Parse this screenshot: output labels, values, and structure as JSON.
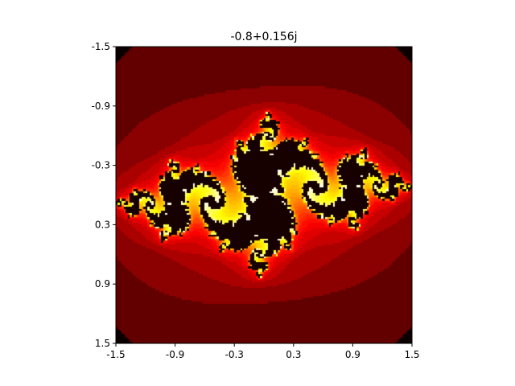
{
  "chart_data": {
    "type": "heatmap",
    "title": "-0.8+0.156j",
    "xlabel": "",
    "ylabel": "",
    "c": {
      "re": -0.8,
      "im": 0.156
    },
    "xlim": [
      -1.5,
      1.5
    ],
    "ylim": [
      -1.5,
      1.5
    ],
    "y_inverted": true,
    "x_ticks": [
      "-1.5",
      "-0.9",
      "-0.3",
      "0.3",
      "0.9",
      "1.5"
    ],
    "y_ticks": [
      "-1.5",
      "-0.9",
      "-0.3",
      "0.3",
      "0.9",
      "1.5"
    ],
    "x_tick_values": [
      -1.5,
      -0.9,
      -0.3,
      0.3,
      0.9,
      1.5
    ],
    "y_tick_values": [
      -1.5,
      -0.9,
      -0.3,
      0.3,
      0.9,
      1.5
    ],
    "colormap": "hot",
    "background_color": "#0b0000",
    "grid": false,
    "legend": "none",
    "resolution": 150,
    "max_iter": 40
  }
}
